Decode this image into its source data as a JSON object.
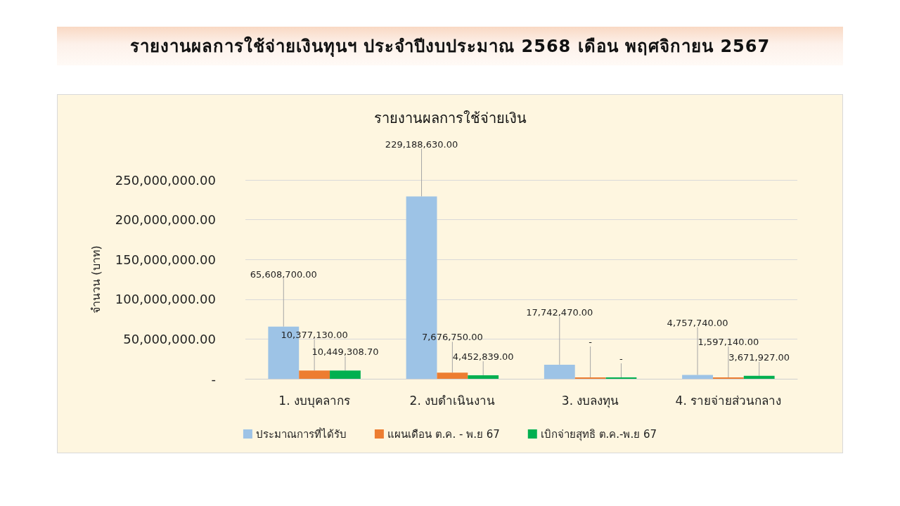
{
  "chart_data": {
    "type": "bar",
    "title": "รายงานผลการใช้จ่ายเงินทุนฯ ประจำปีงบประมาณ 2568 เดือน พฤศจิกายน 2567",
    "subtitle": "รายงานผลการใช้จ่ายเงิน",
    "ylabel": "จำนวน (บาท)",
    "categories": [
      "1. งบบุคลากร",
      "2. งบดำเนินงาน",
      "3. งบลงทุน",
      "4. รายจ่ายส่วนกลาง"
    ],
    "series": [
      {
        "name": "ประมาณการที่ได้รับ",
        "color": "#9dc3e6",
        "values": [
          65608700,
          229188630,
          17742470,
          4757740
        ],
        "value_labels": [
          "65,608,700.00",
          "229,188,630.00",
          "17,742,470.00",
          "4,757,740.00"
        ]
      },
      {
        "name": "แผนเดือน ต.ค. - พ.ย 67",
        "color": "#ed7d31",
        "values": [
          10377130,
          7676750,
          0,
          1597140
        ],
        "value_labels": [
          "10,377,130.00",
          "7,676,750.00",
          "-",
          "1,597,140.00"
        ]
      },
      {
        "name": "เบิกจ่ายสุทธิ ต.ค.-พ.ย 67",
        "color": "#00b050",
        "values": [
          10449308.7,
          4452839,
          0,
          3671927
        ],
        "value_labels": [
          "10,449,308.70",
          "4,452,839.00",
          "-",
          "3,671,927.00"
        ]
      }
    ],
    "ylim": [
      0,
      250000000
    ],
    "yticks": [
      {
        "value": 0,
        "label": "-"
      },
      {
        "value": 50000000,
        "label": "50,000,000.00"
      },
      {
        "value": 100000000,
        "label": "100,000,000.00"
      },
      {
        "value": 150000000,
        "label": "150,000,000.00"
      },
      {
        "value": 200000000,
        "label": "200,000,000.00"
      },
      {
        "value": 250000000,
        "label": "250,000,000.00"
      }
    ],
    "grid": "y",
    "legend": "bottom"
  }
}
